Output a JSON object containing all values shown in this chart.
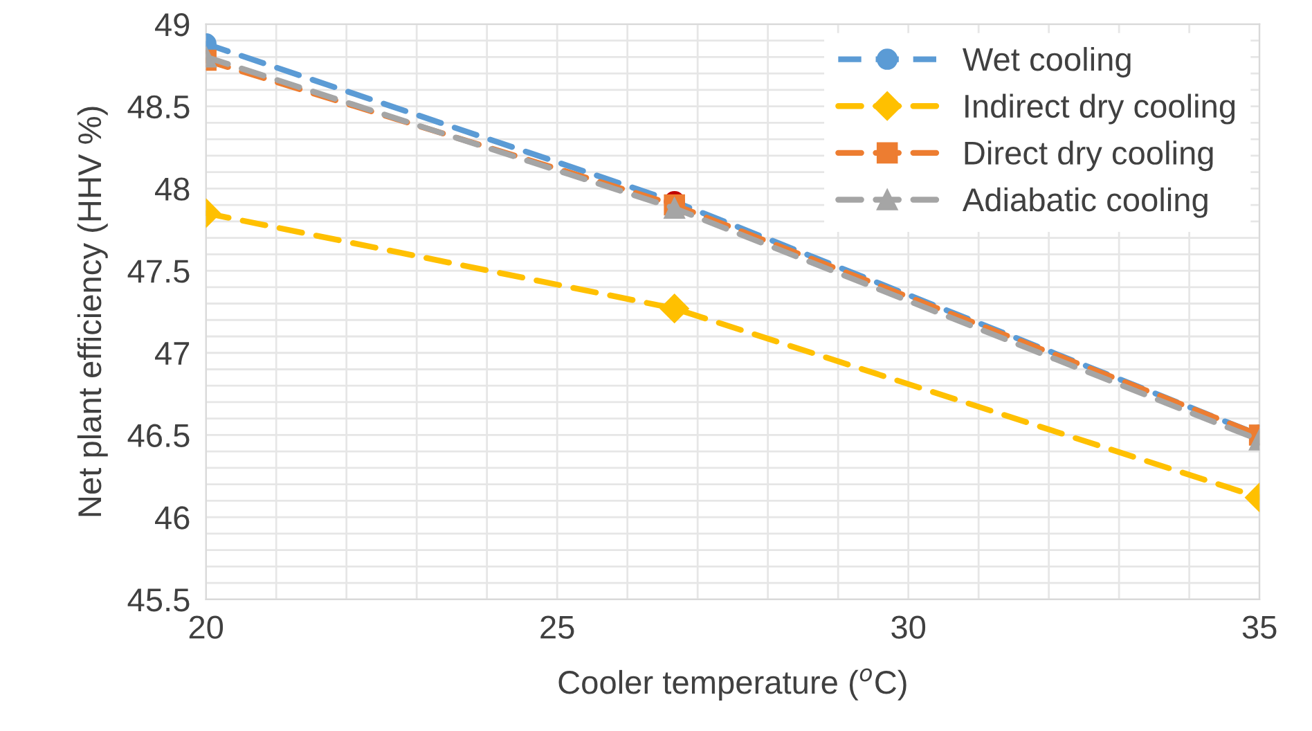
{
  "chart_data": {
    "type": "line",
    "xlabel": "Cooler temperature ($^{o}$C)",
    "ylabel": "Net plant efficiency (HHV %)",
    "xlim": [
      20,
      35
    ],
    "ylim": [
      45.5,
      49
    ],
    "xticks": [
      20,
      {
        "value": 21,
        "label": null
      },
      {
        "value": 22,
        "label": null
      },
      {
        "value": 23,
        "label": null
      },
      {
        "value": 24,
        "label": null
      },
      25,
      {
        "value": 26,
        "label": null
      },
      {
        "value": 27,
        "label": null
      },
      {
        "value": 28,
        "label": null
      },
      {
        "value": 29,
        "label": null
      },
      30,
      {
        "value": 31,
        "label": null
      },
      {
        "value": 32,
        "label": null
      },
      {
        "value": 33,
        "label": null
      },
      {
        "value": 34,
        "label": null
      },
      35
    ],
    "yticks": [
      45.5,
      46,
      46.5,
      47,
      47.5,
      48,
      48.5,
      49
    ],
    "grid": true,
    "legend": "top right",
    "line_style": "dashed",
    "x": [
      20,
      26.67,
      35
    ],
    "series": [
      {
        "name": "Wet cooling",
        "color": "#5b9bd5",
        "colors": [
          "#5b9bd5",
          "#c00000",
          "#5b9bd5"
        ],
        "marker": "circle",
        "values": [
          48.88,
          47.92,
          46.5
        ]
      },
      {
        "name": "Indirect dry cooling",
        "color": "#ffc000",
        "marker": "diamond",
        "values": [
          47.85,
          47.27,
          46.12
        ]
      },
      {
        "name": "Direct dry cooling",
        "color": "#ed7d31",
        "marker": "square",
        "values": [
          48.78,
          47.9,
          46.5
        ]
      },
      {
        "name": "Adiabatic cooling",
        "color": "#a5a5a5",
        "marker": "triangle",
        "values": [
          48.8,
          47.88,
          46.47
        ]
      }
    ]
  }
}
